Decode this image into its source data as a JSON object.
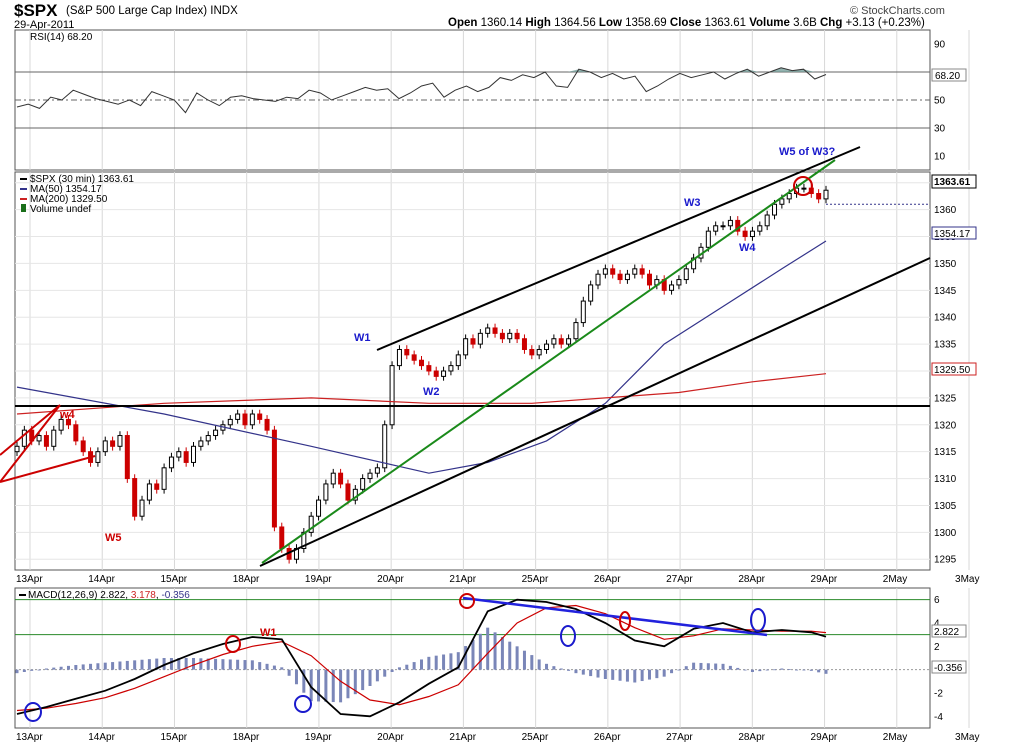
{
  "header": {
    "symbol": "$SPX",
    "name": "(S&P 500 Large Cap Index) INDX",
    "date": "29-Apr-2011",
    "open_label": "Open",
    "open": "1360.14",
    "high_label": "High",
    "high": "1364.56",
    "low_label": "Low",
    "low": "1358.69",
    "close_label": "Close",
    "close": "1363.61",
    "volume_label": "Volume",
    "volume": "3.6B",
    "chg_label": "Chg",
    "chg": "+3.13 (+0.23%)",
    "brand": "© StockCharts.com"
  },
  "colors": {
    "up": "#000000",
    "down": "#cc0000",
    "ma50": "#33338a",
    "ma200": "#cc2222",
    "rsi_fill": "#6f9a96",
    "trend_green": "#1a8a1a",
    "trend_blue": "#2222dd",
    "macd_hist": "#7a86b8",
    "annot_red": "#cc0000",
    "annot_blue": "#1a1acc"
  },
  "chart_data": [
    {
      "type": "line",
      "panel": "rsi",
      "label": "RSI(14) 68.20",
      "last_value": "68.20",
      "ylim": [
        0,
        100
      ],
      "ticks": [
        "90",
        "70",
        "50",
        "30",
        "10"
      ],
      "reference_lines": [
        70,
        50,
        30
      ],
      "x": [
        0,
        3,
        6,
        9,
        12,
        15,
        18,
        21,
        24,
        27,
        30,
        33,
        36,
        39,
        42,
        45,
        48,
        51,
        54,
        57,
        60,
        63,
        66,
        69,
        72,
        75,
        78,
        81,
        84,
        87,
        90,
        93,
        96,
        99,
        102,
        105,
        108,
        111,
        114,
        117,
        120,
        123,
        126,
        129,
        132,
        135,
        138,
        141,
        144,
        147,
        150,
        153,
        156,
        159,
        162,
        165,
        168,
        171,
        174,
        177,
        180,
        183,
        186,
        189,
        192,
        195,
        198,
        201,
        204,
        207,
        210,
        213,
        216
      ],
      "values": [
        45,
        47,
        44,
        52,
        50,
        57,
        54,
        51,
        49,
        47,
        50,
        46,
        56,
        53,
        50,
        41,
        55,
        50,
        46,
        52,
        53,
        51,
        50,
        49,
        52,
        51,
        57,
        55,
        50,
        53,
        56,
        59,
        57,
        58,
        51,
        55,
        60,
        62,
        52,
        57,
        60,
        56,
        59,
        66,
        64,
        68,
        66,
        70,
        60,
        59,
        72,
        70,
        66,
        69,
        65,
        67,
        56,
        60,
        65,
        69,
        66,
        68,
        70,
        65,
        69,
        72,
        67,
        70,
        73,
        71,
        72,
        65,
        68.2
      ]
    },
    {
      "type": "candlestick",
      "panel": "price",
      "label": "$SPX (30 min) 1363.61",
      "last_value": "1363.61",
      "ylim": [
        1293,
        1367
      ],
      "ticks": [
        "1365",
        "1360",
        "1355",
        "1350",
        "1345",
        "1340",
        "1335",
        "1330",
        "1325",
        "1320",
        "1315",
        "1310",
        "1305",
        "1300",
        "1295"
      ],
      "x_ticks": [
        "13Apr",
        "14Apr",
        "15Apr",
        "18Apr",
        "19Apr",
        "20Apr",
        "21Apr",
        "25Apr",
        "26Apr",
        "27Apr",
        "28Apr",
        "29Apr",
        "2May",
        "3May"
      ],
      "close": [
        1316,
        1319,
        1317,
        1318,
        1316,
        1319,
        1321,
        1320,
        1317,
        1315,
        1313,
        1315,
        1317,
        1316,
        1318,
        1310,
        1303,
        1306,
        1309,
        1308,
        1312,
        1314,
        1315,
        1313,
        1316,
        1317,
        1318,
        1319,
        1320,
        1321,
        1322,
        1320,
        1322,
        1321,
        1319,
        1301,
        1297,
        1295,
        1297,
        1300,
        1303,
        1306,
        1309,
        1311,
        1309,
        1306,
        1308,
        1310,
        1311,
        1312,
        1320,
        1331,
        1334,
        1333,
        1332,
        1331,
        1330,
        1329,
        1330,
        1331,
        1333,
        1336,
        1335,
        1337,
        1338,
        1337,
        1336,
        1337,
        1336,
        1334,
        1333,
        1334,
        1335,
        1336,
        1335,
        1336,
        1339,
        1343,
        1346,
        1348,
        1349,
        1348,
        1347,
        1348,
        1349,
        1348,
        1346,
        1347,
        1345,
        1346,
        1347,
        1349,
        1351,
        1353,
        1356,
        1357,
        1357,
        1358,
        1356,
        1355,
        1356,
        1357,
        1359,
        1361,
        1362,
        1363,
        1364,
        1364,
        1363,
        1362,
        1363.61
      ],
      "ma50": {
        "label": "MA(50) 1354.17",
        "last_value": "1354.17",
        "x": [
          0,
          20,
          40,
          56,
          64,
          72,
          80,
          88,
          96,
          104,
          110
        ],
        "values": [
          1327,
          1322,
          1316,
          1311,
          1313,
          1317,
          1324,
          1335,
          1342,
          1349,
          1354.17
        ]
      },
      "ma200": {
        "label": "MA(200) 1329.50",
        "last_value": "1329.50",
        "x": [
          0,
          20,
          40,
          56,
          70,
          80,
          90,
          100,
          110
        ],
        "values": [
          1322,
          1324,
          1325,
          1324,
          1324,
          1325,
          1326,
          1328,
          1329.5
        ]
      },
      "volume_label": "Volume undef"
    },
    {
      "type": "line",
      "panel": "macd",
      "label": "MACD(12,26,9) 2.822, 3.178, -0.356",
      "macd_value": "2.822",
      "signal_value": "3.178",
      "hist_value": "-0.356",
      "ylim": [
        -5,
        7
      ],
      "ticks": [
        "6",
        "4",
        "2",
        "0",
        "-2",
        "-4"
      ],
      "reference_lines": [
        6,
        3
      ],
      "x": [
        0,
        4,
        8,
        12,
        16,
        20,
        24,
        28,
        32,
        36,
        40,
        44,
        48,
        52,
        56,
        60,
        64,
        68,
        72,
        76,
        80,
        84,
        88,
        92,
        96,
        100,
        104,
        108,
        110
      ],
      "macd": [
        -3.8,
        -3.2,
        -2.5,
        -1.8,
        -0.8,
        0.4,
        1.4,
        2.2,
        2.8,
        2.6,
        -1.5,
        -3.8,
        -4.0,
        -2.8,
        -1.2,
        0.2,
        5.0,
        6.0,
        5.8,
        5.2,
        4.0,
        2.5,
        2.0,
        3.5,
        4.0,
        3.2,
        3.4,
        3.2,
        2.822
      ],
      "signal": [
        -3.5,
        -3.3,
        -2.9,
        -2.4,
        -1.6,
        -0.6,
        0.4,
        1.3,
        2.0,
        2.4,
        1.2,
        -1.0,
        -2.6,
        -3.0,
        -2.3,
        -1.3,
        1.4,
        4.0,
        5.3,
        5.5,
        4.8,
        3.6,
        2.6,
        2.9,
        3.5,
        3.4,
        3.3,
        3.3,
        3.178
      ]
    }
  ],
  "annotations": [
    {
      "text": "w4",
      "color": "red"
    },
    {
      "text": "W5",
      "color": "red"
    },
    {
      "text": "W1",
      "color": "blue"
    },
    {
      "text": "W2",
      "color": "blue"
    },
    {
      "text": "W3",
      "color": "blue"
    },
    {
      "text": "W4",
      "color": "blue"
    },
    {
      "text": "W5 of W3?",
      "color": "blue"
    },
    {
      "text": "W1",
      "color": "red"
    }
  ]
}
